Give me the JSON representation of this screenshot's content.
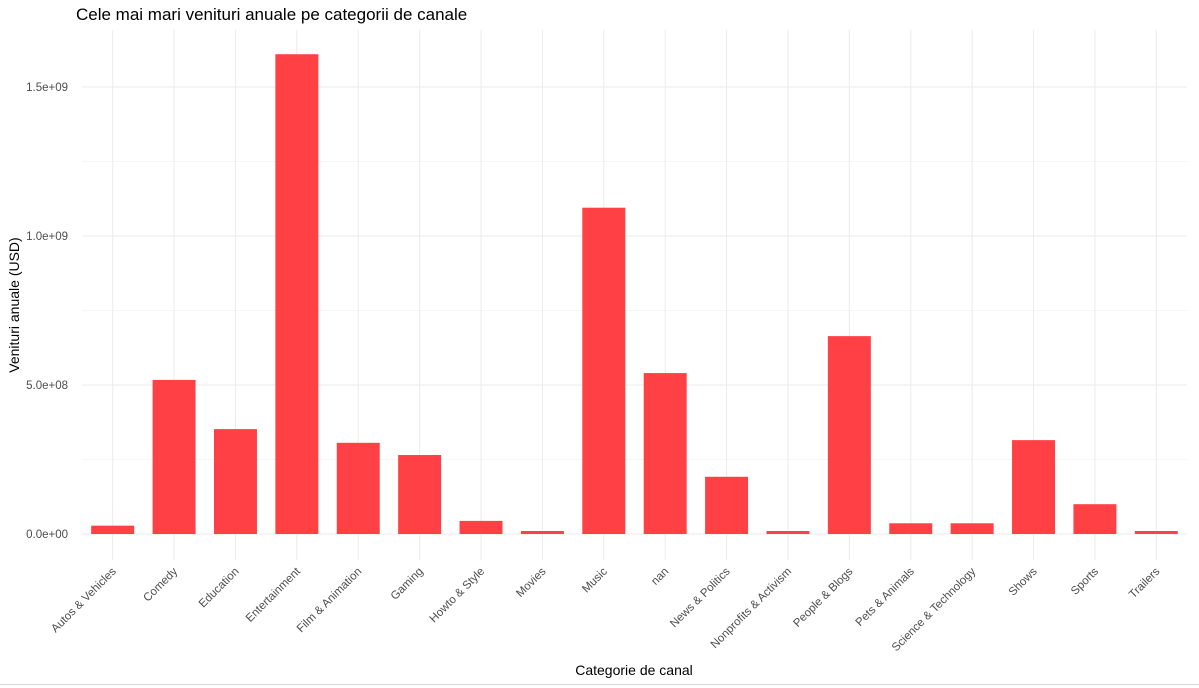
{
  "chart_data": {
    "type": "bar",
    "title": "Cele mai mari venituri anuale pe categorii de canale",
    "xlabel": "Categorie de canal",
    "ylabel": "Venituri anuale (USD)",
    "ylim": [
      -50000000,
      1650000000
    ],
    "yticks": [
      {
        "value": 0,
        "label": "0.0e+00"
      },
      {
        "value": 500000000,
        "label": "5.0e+08"
      },
      {
        "value": 1000000000,
        "label": "1.0e+09"
      },
      {
        "value": 1500000000,
        "label": "1.5e+09"
      }
    ],
    "categories": [
      "Autos & Vehicles",
      "Comedy",
      "Education",
      "Entertainment",
      "Film & Animation",
      "Gaming",
      "Howto & Style",
      "Movies",
      "Music",
      "nan",
      "News & Politics",
      "Nonprofits & Activism",
      "People & Blogs",
      "Pets & Animals",
      "Science & Technology",
      "Shows",
      "Sports",
      "Trailers"
    ],
    "values": [
      28000000,
      517000000,
      352000000,
      1610000000,
      306000000,
      265000000,
      44000000,
      10000000,
      1095000000,
      540000000,
      192000000,
      10000000,
      664000000,
      36000000,
      36000000,
      315000000,
      100000000,
      10000000
    ],
    "bar_color": "#ff4044",
    "grid": true,
    "legend": "none"
  }
}
